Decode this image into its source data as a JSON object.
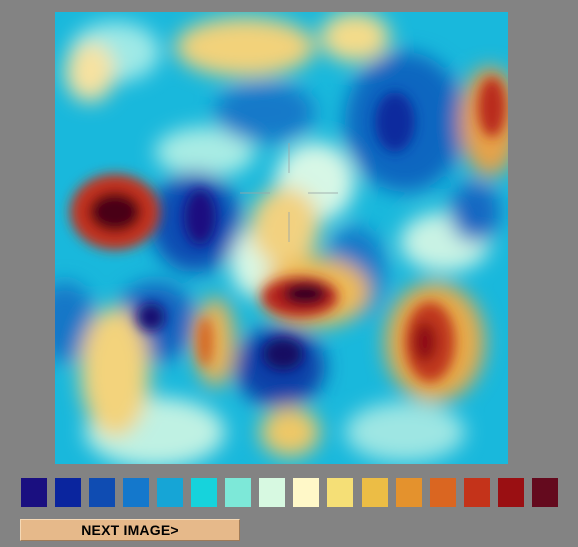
{
  "image": {
    "icon": "colormap-field-image"
  },
  "palette": {
    "colors": [
      "#1a0f80",
      "#0a259e",
      "#0f4cb2",
      "#1478cc",
      "#16a5d6",
      "#16d3dc",
      "#7de8d8",
      "#d7f9e1",
      "#fff8c8",
      "#f5df76",
      "#ecbd45",
      "#e4922d",
      "#da6621",
      "#c4331a",
      "#9a0f12",
      "#640a1e"
    ]
  },
  "controls": {
    "next_label": "NEXT IMAGE>"
  }
}
